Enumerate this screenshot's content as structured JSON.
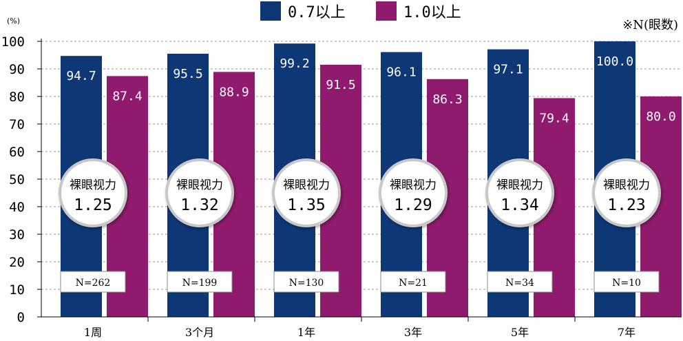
{
  "chart_data": {
    "type": "bar",
    "unit_label": "(%)",
    "note": "※N(眼数)",
    "categories": [
      "1周",
      "3个月",
      "1年",
      "3年",
      "5年",
      "7年"
    ],
    "series": [
      {
        "name": "0.7以上",
        "color": "#0d3775",
        "values": [
          94.7,
          95.5,
          99.2,
          96.1,
          97.1,
          100.0
        ],
        "labels": [
          "94.7",
          "95.5",
          "99.2",
          "96.1",
          "97.1",
          "100.0"
        ]
      },
      {
        "name": "1.0以上",
        "color": "#901a6e",
        "values": [
          87.4,
          88.9,
          91.5,
          86.3,
          79.4,
          80.0
        ],
        "labels": [
          "87.4",
          "88.9",
          "91.5",
          "86.3",
          "79.4",
          "80.0"
        ]
      }
    ],
    "badges": {
      "title": "裸眼视力",
      "values": [
        "1.25",
        "1.32",
        "1.35",
        "1.29",
        "1.34",
        "1.23"
      ]
    },
    "counts": [
      "N=262",
      "N=199",
      "N=130",
      "N=21",
      "N=34",
      "N=10"
    ],
    "ylim": [
      0,
      100
    ],
    "yticks": [
      "0",
      "10",
      "20",
      "30",
      "40",
      "50",
      "60",
      "70",
      "80",
      "90",
      "100"
    ],
    "grid": true,
    "legend_position": "top-center"
  }
}
